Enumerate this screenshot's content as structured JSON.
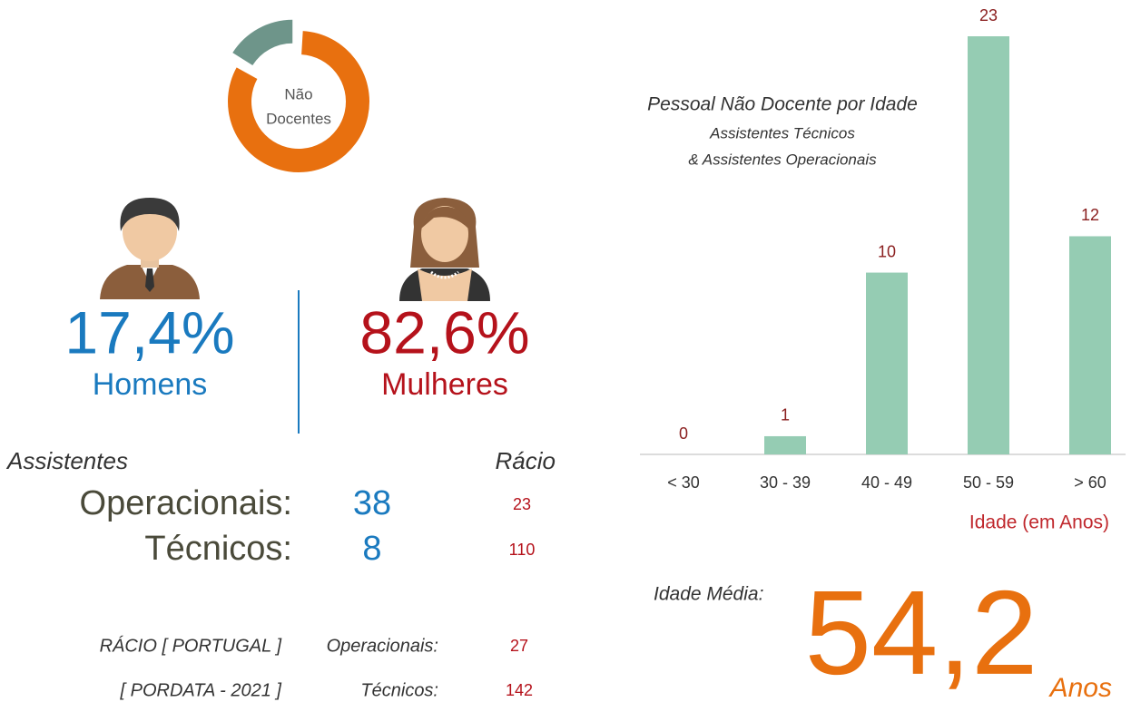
{
  "chart_data": [
    {
      "type": "pie",
      "title": [
        "Não",
        "Docentes"
      ],
      "values": [
        83,
        17
      ],
      "colors": [
        "#e8700f",
        "#6e958a"
      ]
    },
    {
      "type": "bar",
      "title": "Pessoal Não Docente por Idade",
      "subtitle": [
        "Assistentes Técnicos",
        "& Assistentes Operacionais"
      ],
      "categories": [
        "< 30",
        "30 - 39",
        "40 - 49",
        "50 - 59",
        "> 60"
      ],
      "values": [
        0,
        1,
        10,
        23,
        12
      ],
      "color": "#95ccb3",
      "x_label": "Idade (em Anos)"
    }
  ],
  "gender": {
    "men": {
      "value": "17,4%",
      "label": "Homens"
    },
    "women": {
      "value": "82,6%",
      "label": "Mulheres"
    }
  },
  "assistants": {
    "title": "Assistentes",
    "ratio_header": "Rácio",
    "rows": [
      [
        "Operacionais:",
        "38",
        "23"
      ],
      [
        "Técnicos:",
        "8",
        "110"
      ]
    ]
  },
  "portugal": {
    "rows": [
      [
        "RÁCIO [ PORTUGAL ]",
        "Operacionais:",
        "27"
      ],
      [
        "[ PORDATA - 2021 ]",
        "Técnicos:",
        "142"
      ]
    ]
  },
  "average_age": {
    "label": "Idade  Média:",
    "value": "54,2",
    "unit": "Anos"
  }
}
